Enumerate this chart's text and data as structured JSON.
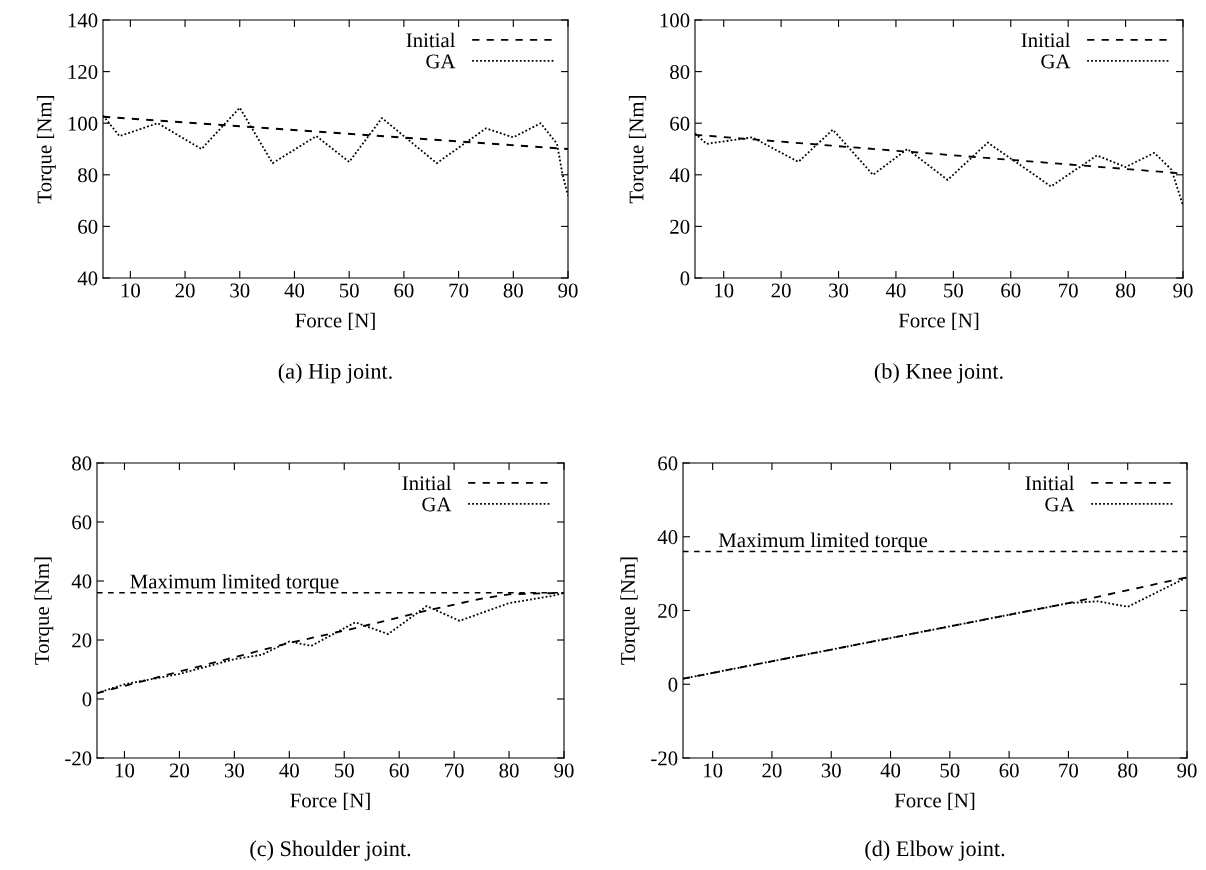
{
  "chart_data": [
    {
      "type": "line",
      "xlabel": "Force [N]",
      "ylabel": "Torque [Nm]",
      "annotations": [
        "(a) Hip joint."
      ],
      "xlim": [
        5,
        90
      ],
      "xticks": [
        10,
        20,
        30,
        40,
        50,
        60,
        70,
        80,
        90
      ],
      "ylim": [
        40,
        140
      ],
      "yticks": [
        40,
        60,
        80,
        100,
        120,
        140
      ],
      "legend": "top right",
      "grid": false,
      "series": [
        {
          "name": "Initial",
          "color": "#000000",
          "line_style": "dashed",
          "x": [
            5,
            90
          ],
          "values": [
            102.5,
            90
          ]
        },
        {
          "name": "GA",
          "color": "#000000",
          "line_style": "dotted",
          "x": [
            5,
            8,
            15,
            23,
            30,
            36,
            44,
            50,
            56,
            66,
            75,
            80,
            85,
            88,
            89,
            90
          ],
          "values": [
            103,
            95,
            100,
            90,
            106,
            84.5,
            95,
            85,
            102,
            84.5,
            98,
            94.5,
            100,
            92,
            80,
            72
          ]
        }
      ]
    },
    {
      "type": "line",
      "xlabel": "Force [N]",
      "ylabel": "Torque [Nm]",
      "annotations": [
        "(b) Knee joint."
      ],
      "xlim": [
        5,
        90
      ],
      "xticks": [
        10,
        20,
        30,
        40,
        50,
        60,
        70,
        80,
        90
      ],
      "ylim": [
        0,
        100
      ],
      "yticks": [
        0,
        20,
        40,
        60,
        80,
        100
      ],
      "legend": "top right",
      "grid": false,
      "series": [
        {
          "name": "Initial",
          "color": "#000000",
          "line_style": "dashed",
          "x": [
            5,
            90
          ],
          "values": [
            55.5,
            40.5
          ]
        },
        {
          "name": "GA",
          "color": "#000000",
          "line_style": "dotted",
          "x": [
            5,
            7,
            15,
            23,
            29,
            36,
            42,
            49,
            56,
            67,
            75,
            80,
            85,
            88,
            90
          ],
          "values": [
            56,
            52,
            54.5,
            45,
            57.5,
            40,
            50,
            38,
            52.5,
            35.5,
            47.5,
            43,
            48.5,
            42,
            28
          ]
        }
      ]
    },
    {
      "type": "line",
      "xlabel": "Force [N]",
      "ylabel": "Torque [Nm]",
      "annotations": [
        "(c) Shoulder joint."
      ],
      "xlim": [
        5,
        90
      ],
      "xticks": [
        10,
        20,
        30,
        40,
        50,
        60,
        70,
        80,
        90
      ],
      "ylim": [
        -20,
        80
      ],
      "yticks": [
        -20,
        0,
        20,
        40,
        60,
        80
      ],
      "legend": "top right",
      "grid": false,
      "ref_lines": [
        {
          "axis": "y",
          "value": 36,
          "label": "Maximum limited torque",
          "line_style": "dashed"
        }
      ],
      "series": [
        {
          "name": "Initial",
          "color": "#000000",
          "line_style": "dashed",
          "x": [
            5,
            40,
            52,
            65,
            75,
            80,
            90
          ],
          "values": [
            2,
            19,
            24,
            30,
            34,
            35.5,
            36
          ]
        },
        {
          "name": "GA",
          "color": "#000000",
          "line_style": "dotted",
          "x": [
            5,
            10,
            20,
            30,
            35,
            40,
            44,
            52,
            58,
            65,
            71,
            80,
            88,
            90
          ],
          "values": [
            2,
            5,
            8.5,
            13.5,
            15,
            19.5,
            18,
            26,
            22,
            31.5,
            26.5,
            32.5,
            35,
            36
          ]
        }
      ]
    },
    {
      "type": "line",
      "xlabel": "Force [N]",
      "ylabel": "Torque [Nm]",
      "annotations": [
        "(d) Elbow joint."
      ],
      "xlim": [
        5,
        90
      ],
      "xticks": [
        10,
        20,
        30,
        40,
        50,
        60,
        70,
        80,
        90
      ],
      "ylim": [
        -20,
        60
      ],
      "yticks": [
        -20,
        0,
        20,
        40,
        60
      ],
      "legend": "top right",
      "grid": false,
      "ref_lines": [
        {
          "axis": "y",
          "value": 36,
          "label": "Maximum limited torque",
          "line_style": "dashed"
        }
      ],
      "series": [
        {
          "name": "Initial",
          "color": "#000000",
          "line_style": "dashed",
          "x": [
            5,
            70,
            90
          ],
          "values": [
            1.5,
            22,
            29
          ]
        },
        {
          "name": "GA",
          "color": "#000000",
          "line_style": "dotted",
          "x": [
            5,
            70,
            75,
            80,
            85,
            90
          ],
          "values": [
            1.5,
            22,
            22.5,
            21,
            25,
            29
          ]
        }
      ]
    }
  ]
}
